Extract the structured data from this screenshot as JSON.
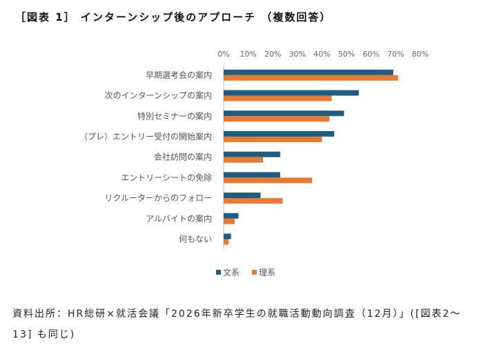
{
  "title": "［図表 1］ インターンシップ後のアプローチ （複数回答）",
  "source": "資料出所：HR総研×就活会議「2026年新卒学生の就職活動動向調査（12月）」([図表2～13] も同じ)",
  "colors": {
    "series_1": "#1f5c7f",
    "series_2": "#e97a32",
    "axis": "#bfbfbf"
  },
  "chart_data": {
    "type": "bar",
    "orientation": "horizontal",
    "categories": [
      "早期選考会の案内",
      "次のインターンシップの案内",
      "特別セミナーの案内",
      "（プレ）エントリー受付の開始案内",
      "会社訪問の案内",
      "エントリーシートの免除",
      "リクルーターからのフォロー",
      "アルバイトの案内",
      "何もない"
    ],
    "series": [
      {
        "name": "文系",
        "values": [
          69,
          55,
          49,
          45,
          23,
          23,
          15,
          6,
          3
        ]
      },
      {
        "name": "理系",
        "values": [
          71,
          44,
          43,
          40,
          16,
          36,
          24,
          4.5,
          2
        ]
      }
    ],
    "xlim": [
      0,
      80
    ],
    "xticks": [
      "0%",
      "10%",
      "20%",
      "30%",
      "40%",
      "50%",
      "60%",
      "70%",
      "80%"
    ],
    "grid": false,
    "legend": "bottom"
  }
}
